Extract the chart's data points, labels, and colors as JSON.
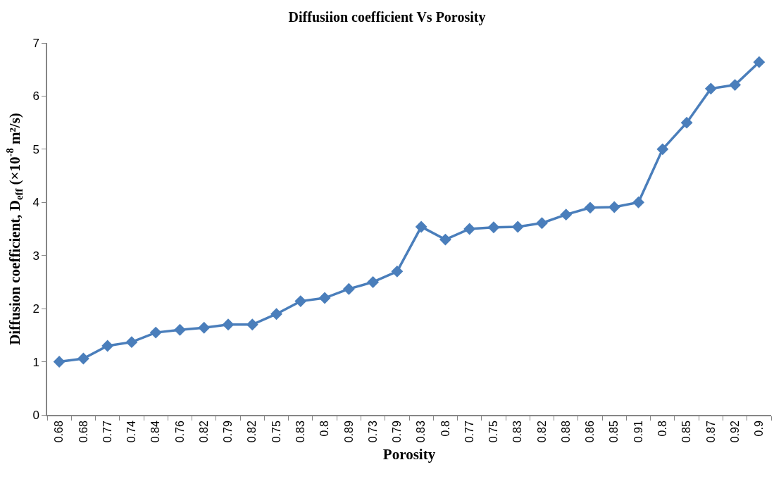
{
  "chart_data": {
    "type": "line",
    "title": "Diffusiion coefficient Vs Porosity",
    "xlabel": "Porosity",
    "ylabel": "Diffusion coefficient, D$_{eff}$ (×10$^{-8}$ m²/s)",
    "categories": [
      "0.68",
      "0.68",
      "0.77",
      "0.74",
      "0.84",
      "0.76",
      "0.82",
      "0.79",
      "0.82",
      "0.75",
      "0.83",
      "0.8",
      "0.89",
      "0.73",
      "0.79",
      "0.83",
      "0.8",
      "0.77",
      "0.75",
      "0.83",
      "0.82",
      "0.88",
      "0.86",
      "0.85",
      "0.91",
      "0.8",
      "0.85",
      "0.87",
      "0.92",
      "0.9"
    ],
    "series": [
      {
        "color": "#4a7ebb",
        "values": [
          1.0,
          1.06,
          1.3,
          1.37,
          1.55,
          1.6,
          1.64,
          1.7,
          1.7,
          1.9,
          2.14,
          2.2,
          2.37,
          2.5,
          2.7,
          3.54,
          3.3,
          3.5,
          3.53,
          3.54,
          3.61,
          3.77,
          3.9,
          3.91,
          4.0,
          5.0,
          5.5,
          6.14,
          6.21,
          6.64
        ]
      }
    ],
    "ylim": [
      0,
      7
    ],
    "yticks": [
      0,
      1,
      2,
      3,
      4,
      5,
      6,
      7
    ],
    "grid": false,
    "marker": "diamond",
    "line_style": "solid"
  }
}
